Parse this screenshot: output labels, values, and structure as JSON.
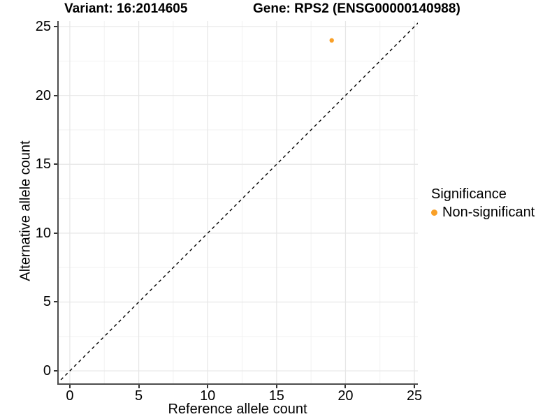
{
  "chart_data": {
    "type": "scatter",
    "title_left": "Variant: 16:2014605",
    "title_right": "Gene: RPS2 (ENSG00000140988)",
    "xlabel": "Reference allele count",
    "ylabel": "Alternative allele count",
    "xticks": [
      0,
      5,
      10,
      15,
      20,
      25
    ],
    "yticks": [
      0,
      5,
      10,
      15,
      20,
      25
    ],
    "x_minor_ticks": [
      2.5,
      7.5,
      12.5,
      17.5,
      22.5
    ],
    "y_minor_ticks": [
      2.5,
      7.5,
      12.5,
      17.5,
      22.5
    ],
    "xlim": [
      -0.91,
      25.25
    ],
    "ylim": [
      -1.01,
      25.41
    ],
    "grid": "major+minor",
    "points": [
      {
        "x": 19,
        "y": 24,
        "series": "Non-significant"
      }
    ],
    "reference_line": {
      "type": "abline",
      "slope": 1,
      "intercept": 0,
      "linetype": "dashed",
      "color": "#000000"
    },
    "legend": {
      "title": "Significance",
      "position": "right",
      "entries": [
        {
          "label": "Non-significant",
          "color": "#F9A028"
        }
      ]
    },
    "colors": {
      "point": "#F9A028",
      "grid_major": "#E6E6E6",
      "grid_minor": "#F2F2F2",
      "axis_line": "#4D4D4D",
      "tick": "#333333",
      "text": "#000000"
    }
  }
}
